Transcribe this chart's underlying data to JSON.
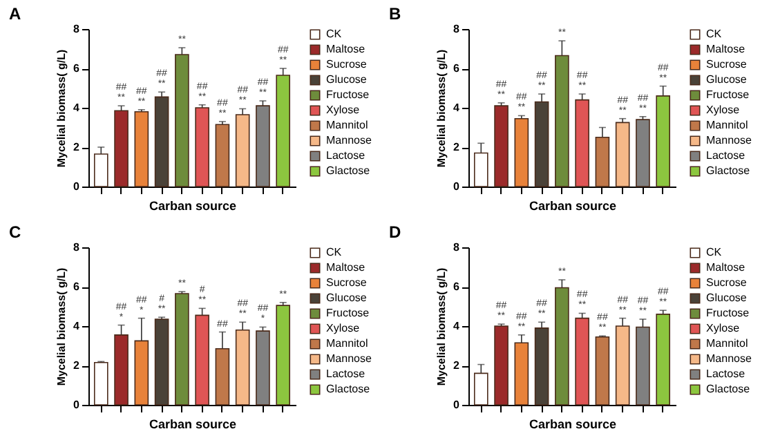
{
  "chart_data": [
    {
      "type": "bar",
      "title": "A",
      "xlabel": "Carban source",
      "ylabel": "Mycelial biomass( g/L)",
      "categories": [
        null,
        null,
        null,
        null,
        null,
        null,
        null,
        null,
        null,
        null
      ],
      "series": [
        {
          "name": "CK",
          "color": "#ffffff",
          "values": [
            1.65,
            null,
            null,
            null,
            null,
            null,
            null,
            null,
            null,
            null
          ],
          "errors": [
            0.35,
            null,
            null,
            null,
            null,
            null,
            null,
            null,
            null,
            null
          ]
        },
        {
          "name": "Maltose",
          "color": "#9b2a2a",
          "values": [
            null,
            3.85,
            null,
            null,
            null,
            null,
            null,
            null,
            null,
            null
          ],
          "errors": [
            null,
            0.25,
            null,
            null,
            null,
            null,
            null,
            null,
            null,
            null
          ],
          "value_labels": [
            null,
            "##\n**",
            null,
            null,
            null,
            null,
            null,
            null,
            null,
            null
          ]
        },
        {
          "name": "Sucrose",
          "color": "#e8823a",
          "values": [
            null,
            null,
            3.8,
            null,
            null,
            null,
            null,
            null,
            null,
            null
          ],
          "errors": [
            null,
            null,
            0.1,
            null,
            null,
            null,
            null,
            null,
            null,
            null
          ],
          "value_labels": [
            null,
            null,
            "##\n**",
            null,
            null,
            null,
            null,
            null,
            null,
            null
          ]
        },
        {
          "name": "Glucose",
          "color": "#4a4238",
          "values": [
            null,
            null,
            null,
            4.55,
            null,
            null,
            null,
            null,
            null,
            null
          ],
          "errors": [
            null,
            null,
            null,
            0.25,
            null,
            null,
            null,
            null,
            null,
            null
          ],
          "value_labels": [
            null,
            null,
            null,
            "##\n**",
            null,
            null,
            null,
            null,
            null,
            null
          ]
        },
        {
          "name": "Fructose",
          "color": "#6e8c3c",
          "values": [
            null,
            null,
            null,
            null,
            6.7,
            null,
            null,
            null,
            null,
            null
          ],
          "errors": [
            null,
            null,
            null,
            null,
            0.35,
            null,
            null,
            null,
            null,
            null
          ],
          "value_labels": [
            null,
            null,
            null,
            null,
            "**",
            null,
            null,
            null,
            null,
            null
          ]
        },
        {
          "name": "Xylose",
          "color": "#e05555",
          "values": [
            null,
            null,
            null,
            null,
            null,
            4.0,
            null,
            null,
            null,
            null
          ],
          "errors": [
            null,
            null,
            null,
            null,
            null,
            0.15,
            null,
            null,
            null,
            null
          ],
          "value_labels": [
            null,
            null,
            null,
            null,
            null,
            "##\n**",
            null,
            null,
            null,
            null
          ]
        },
        {
          "name": "Mannitol",
          "color": "#c0784a",
          "values": [
            null,
            null,
            null,
            null,
            null,
            null,
            3.15,
            null,
            null,
            null
          ],
          "errors": [
            null,
            null,
            null,
            null,
            null,
            null,
            0.15,
            null,
            null,
            null
          ],
          "value_labels": [
            null,
            null,
            null,
            null,
            null,
            null,
            "##\n**",
            null,
            null,
            null
          ]
        },
        {
          "name": "Mannose",
          "color": "#f5b888",
          "values": [
            null,
            null,
            null,
            null,
            null,
            null,
            null,
            3.65,
            null,
            null
          ],
          "errors": [
            null,
            null,
            null,
            null,
            null,
            null,
            null,
            0.3,
            null,
            null
          ],
          "value_labels": [
            null,
            null,
            null,
            null,
            null,
            null,
            null,
            "##\n**",
            null,
            null
          ]
        },
        {
          "name": "Lactose",
          "color": "#808080",
          "values": [
            null,
            null,
            null,
            null,
            null,
            null,
            null,
            null,
            4.1,
            null
          ],
          "errors": [
            null,
            null,
            null,
            null,
            null,
            null,
            null,
            null,
            0.25,
            null
          ],
          "value_labels": [
            null,
            null,
            null,
            null,
            null,
            null,
            null,
            null,
            "##\n**",
            null
          ]
        },
        {
          "name": "Glactose",
          "color": "#8cc63f",
          "values": [
            null,
            null,
            null,
            null,
            null,
            null,
            null,
            null,
            null,
            5.65
          ],
          "errors": [
            null,
            null,
            null,
            null,
            null,
            null,
            null,
            null,
            null,
            0.35
          ],
          "value_labels": [
            null,
            null,
            null,
            null,
            null,
            null,
            null,
            null,
            null,
            "##\n**"
          ]
        }
      ],
      "ylim": [
        0,
        8
      ],
      "yticks": [
        0,
        2,
        4,
        6,
        8
      ],
      "legend": "right",
      "tick_labels": "y"
    },
    {
      "type": "bar",
      "title": "B",
      "xlabel": "Carban source",
      "ylabel": "Mycelial biomass( g/L)",
      "categories": [
        null,
        null,
        null,
        null,
        null,
        null,
        null,
        null,
        null,
        null
      ],
      "series": [
        {
          "name": "CK",
          "color": "#ffffff",
          "values": [
            1.7,
            null,
            null,
            null,
            null,
            null,
            null,
            null,
            null,
            null
          ],
          "errors": [
            0.5,
            null,
            null,
            null,
            null,
            null,
            null,
            null,
            null,
            null
          ]
        },
        {
          "name": "Maltose",
          "color": "#9b2a2a",
          "values": [
            null,
            4.1,
            null,
            null,
            null,
            null,
            null,
            null,
            null,
            null
          ],
          "errors": [
            null,
            0.15,
            null,
            null,
            null,
            null,
            null,
            null,
            null,
            null
          ],
          "value_labels": [
            null,
            "##\n**",
            null,
            null,
            null,
            null,
            null,
            null,
            null,
            null
          ]
        },
        {
          "name": "Sucrose",
          "color": "#e8823a",
          "values": [
            null,
            null,
            3.45,
            null,
            null,
            null,
            null,
            null,
            null,
            null
          ],
          "errors": [
            null,
            null,
            0.15,
            null,
            null,
            null,
            null,
            null,
            null,
            null
          ],
          "value_labels": [
            null,
            null,
            "##\n**",
            null,
            null,
            null,
            null,
            null,
            null,
            null
          ]
        },
        {
          "name": "Glucose",
          "color": "#4a4238",
          "values": [
            null,
            null,
            null,
            4.3,
            null,
            null,
            null,
            null,
            null,
            null
          ],
          "errors": [
            null,
            null,
            null,
            0.4,
            null,
            null,
            null,
            null,
            null,
            null
          ],
          "value_labels": [
            null,
            null,
            null,
            "##\n**",
            null,
            null,
            null,
            null,
            null,
            null
          ]
        },
        {
          "name": "Fructose",
          "color": "#6e8c3c",
          "values": [
            null,
            null,
            null,
            null,
            6.65,
            null,
            null,
            null,
            null,
            null
          ],
          "errors": [
            null,
            null,
            null,
            null,
            0.75,
            null,
            null,
            null,
            null,
            null
          ],
          "value_labels": [
            null,
            null,
            null,
            null,
            "**",
            null,
            null,
            null,
            null,
            null
          ]
        },
        {
          "name": "Xylose",
          "color": "#e05555",
          "values": [
            null,
            null,
            null,
            null,
            null,
            4.4,
            null,
            null,
            null,
            null
          ],
          "errors": [
            null,
            null,
            null,
            null,
            null,
            0.3,
            null,
            null,
            null,
            null
          ],
          "value_labels": [
            null,
            null,
            null,
            null,
            null,
            "##\n**",
            null,
            null,
            null,
            null
          ]
        },
        {
          "name": "Mannitol",
          "color": "#c0784a",
          "values": [
            null,
            null,
            null,
            null,
            null,
            null,
            2.5,
            null,
            null,
            null
          ],
          "errors": [
            null,
            null,
            null,
            null,
            null,
            null,
            0.5,
            null,
            null,
            null
          ]
        },
        {
          "name": "Mannose",
          "color": "#f5b888",
          "values": [
            null,
            null,
            null,
            null,
            null,
            null,
            null,
            3.25,
            null,
            null
          ],
          "errors": [
            null,
            null,
            null,
            null,
            null,
            null,
            null,
            0.2,
            null,
            null
          ],
          "value_labels": [
            null,
            null,
            null,
            null,
            null,
            null,
            null,
            "##\n**",
            null,
            null
          ]
        },
        {
          "name": "Lactose",
          "color": "#808080",
          "values": [
            null,
            null,
            null,
            null,
            null,
            null,
            null,
            null,
            3.4,
            null
          ],
          "errors": [
            null,
            null,
            null,
            null,
            null,
            null,
            null,
            null,
            0.15,
            null
          ],
          "value_labels": [
            null,
            null,
            null,
            null,
            null,
            null,
            null,
            null,
            "##\n**",
            null
          ]
        },
        {
          "name": "Glactose",
          "color": "#8cc63f",
          "values": [
            null,
            null,
            null,
            null,
            null,
            null,
            null,
            null,
            null,
            4.6
          ],
          "errors": [
            null,
            null,
            null,
            null,
            null,
            null,
            null,
            null,
            null,
            0.5
          ],
          "value_labels": [
            null,
            null,
            null,
            null,
            null,
            null,
            null,
            null,
            null,
            "##\n**"
          ]
        }
      ],
      "ylim": [
        0,
        8
      ],
      "yticks": [
        0,
        2,
        4,
        6,
        8
      ],
      "legend": "right",
      "tick_labels": "y"
    },
    {
      "type": "bar",
      "title": "C",
      "xlabel": "Carban source",
      "ylabel": "Mycelial biomass( g/L)",
      "categories": [
        null,
        null,
        null,
        null,
        null,
        null,
        null,
        null,
        null,
        null
      ],
      "series": [
        {
          "name": "CK",
          "color": "#ffffff",
          "values": [
            2.15,
            null,
            null,
            null,
            null,
            null,
            null,
            null,
            null,
            null
          ],
          "errors": [
            0.05,
            null,
            null,
            null,
            null,
            null,
            null,
            null,
            null,
            null
          ]
        },
        {
          "name": "Maltose",
          "color": "#9b2a2a",
          "values": [
            null,
            3.55,
            null,
            null,
            null,
            null,
            null,
            null,
            null,
            null
          ],
          "errors": [
            null,
            0.5,
            null,
            null,
            null,
            null,
            null,
            null,
            null,
            null
          ],
          "value_labels": [
            null,
            "##\n*",
            null,
            null,
            null,
            null,
            null,
            null,
            null,
            null
          ]
        },
        {
          "name": "Sucrose",
          "color": "#e8823a",
          "values": [
            null,
            null,
            3.25,
            null,
            null,
            null,
            null,
            null,
            null,
            null
          ],
          "errors": [
            null,
            null,
            1.15,
            null,
            null,
            null,
            null,
            null,
            null,
            null
          ],
          "value_labels": [
            null,
            null,
            "##\n*",
            null,
            null,
            null,
            null,
            null,
            null,
            null
          ]
        },
        {
          "name": "Glucose",
          "color": "#4a4238",
          "values": [
            null,
            null,
            null,
            4.35,
            null,
            null,
            null,
            null,
            null,
            null
          ],
          "errors": [
            null,
            null,
            null,
            0.1,
            null,
            null,
            null,
            null,
            null,
            null
          ],
          "value_labels": [
            null,
            null,
            null,
            "#\n**",
            null,
            null,
            null,
            null,
            null,
            null
          ]
        },
        {
          "name": "Fructose",
          "color": "#6e8c3c",
          "values": [
            null,
            null,
            null,
            null,
            5.65,
            null,
            null,
            null,
            null,
            null
          ],
          "errors": [
            null,
            null,
            null,
            null,
            0.1,
            null,
            null,
            null,
            null,
            null
          ],
          "value_labels": [
            null,
            null,
            null,
            null,
            "**",
            null,
            null,
            null,
            null,
            null
          ]
        },
        {
          "name": "Xylose",
          "color": "#e05555",
          "values": [
            null,
            null,
            null,
            null,
            null,
            4.55,
            null,
            null,
            null,
            null
          ],
          "errors": [
            null,
            null,
            null,
            null,
            null,
            0.35,
            null,
            null,
            null,
            null
          ],
          "value_labels": [
            null,
            null,
            null,
            null,
            null,
            "#\n**",
            null,
            null,
            null,
            null
          ]
        },
        {
          "name": "Mannitol",
          "color": "#c0784a",
          "values": [
            null,
            null,
            null,
            null,
            null,
            null,
            2.85,
            null,
            null,
            null
          ],
          "errors": [
            null,
            null,
            null,
            null,
            null,
            null,
            0.85,
            null,
            null,
            null
          ],
          "value_labels": [
            null,
            null,
            null,
            null,
            null,
            null,
            "##",
            null,
            null,
            null
          ]
        },
        {
          "name": "Mannose",
          "color": "#f5b888",
          "values": [
            null,
            null,
            null,
            null,
            null,
            null,
            null,
            3.8,
            null,
            null
          ],
          "errors": [
            null,
            null,
            null,
            null,
            null,
            null,
            null,
            0.4,
            null,
            null
          ],
          "value_labels": [
            null,
            null,
            null,
            null,
            null,
            null,
            null,
            "##\n**",
            null,
            null
          ]
        },
        {
          "name": "Lactose",
          "color": "#808080",
          "values": [
            null,
            null,
            null,
            null,
            null,
            null,
            null,
            null,
            3.75,
            null
          ],
          "errors": [
            null,
            null,
            null,
            null,
            null,
            null,
            null,
            null,
            0.2,
            null
          ],
          "value_labels": [
            null,
            null,
            null,
            null,
            null,
            null,
            null,
            null,
            "##\n*",
            null
          ]
        },
        {
          "name": "Glactose",
          "color": "#8cc63f",
          "values": [
            null,
            null,
            null,
            null,
            null,
            null,
            null,
            null,
            null,
            5.05
          ],
          "errors": [
            null,
            null,
            null,
            null,
            null,
            null,
            null,
            null,
            null,
            0.15
          ],
          "value_labels": [
            null,
            null,
            null,
            null,
            null,
            null,
            null,
            null,
            null,
            "**"
          ]
        }
      ],
      "ylim": [
        0,
        8
      ],
      "yticks": [
        0,
        2,
        4,
        6,
        8
      ],
      "legend": "right",
      "tick_labels": "y"
    },
    {
      "type": "bar",
      "title": "D",
      "xlabel": "Carban source",
      "ylabel": "Mycelial biomass( g/L)",
      "categories": [
        null,
        null,
        null,
        null,
        null,
        null,
        null,
        null,
        null,
        null
      ],
      "series": [
        {
          "name": "CK",
          "color": "#ffffff",
          "values": [
            1.6,
            null,
            null,
            null,
            null,
            null,
            null,
            null,
            null,
            null
          ],
          "errors": [
            0.45,
            null,
            null,
            null,
            null,
            null,
            null,
            null,
            null,
            null
          ]
        },
        {
          "name": "Maltose",
          "color": "#9b2a2a",
          "values": [
            null,
            4.0,
            null,
            null,
            null,
            null,
            null,
            null,
            null,
            null
          ],
          "errors": [
            null,
            0.1,
            null,
            null,
            null,
            null,
            null,
            null,
            null,
            null
          ],
          "value_labels": [
            null,
            "##\n**",
            null,
            null,
            null,
            null,
            null,
            null,
            null,
            null
          ]
        },
        {
          "name": "Sucrose",
          "color": "#e8823a",
          "values": [
            null,
            null,
            3.15,
            null,
            null,
            null,
            null,
            null,
            null,
            null
          ],
          "errors": [
            null,
            null,
            0.4,
            null,
            null,
            null,
            null,
            null,
            null,
            null
          ],
          "value_labels": [
            null,
            null,
            "##\n**",
            null,
            null,
            null,
            null,
            null,
            null,
            null
          ]
        },
        {
          "name": "Glucose",
          "color": "#4a4238",
          "values": [
            null,
            null,
            null,
            3.9,
            null,
            null,
            null,
            null,
            null,
            null
          ],
          "errors": [
            null,
            null,
            null,
            0.3,
            null,
            null,
            null,
            null,
            null,
            null
          ],
          "value_labels": [
            null,
            null,
            null,
            "##\n**",
            null,
            null,
            null,
            null,
            null,
            null
          ]
        },
        {
          "name": "Fructose",
          "color": "#6e8c3c",
          "values": [
            null,
            null,
            null,
            null,
            5.95,
            null,
            null,
            null,
            null,
            null
          ],
          "errors": [
            null,
            null,
            null,
            null,
            0.4,
            null,
            null,
            null,
            null,
            null
          ],
          "value_labels": [
            null,
            null,
            null,
            null,
            "**",
            null,
            null,
            null,
            null,
            null
          ]
        },
        {
          "name": "Xylose",
          "color": "#e05555",
          "values": [
            null,
            null,
            null,
            null,
            null,
            4.4,
            null,
            null,
            null,
            null
          ],
          "errors": [
            null,
            null,
            null,
            null,
            null,
            0.25,
            null,
            null,
            null,
            null
          ],
          "value_labels": [
            null,
            null,
            null,
            null,
            null,
            "##\n**",
            null,
            null,
            null,
            null
          ]
        },
        {
          "name": "Mannitol",
          "color": "#c0784a",
          "values": [
            null,
            null,
            null,
            null,
            null,
            null,
            3.45,
            null,
            null,
            null
          ],
          "errors": [
            null,
            null,
            null,
            null,
            null,
            null,
            0.05,
            null,
            null,
            null
          ],
          "value_labels": [
            null,
            null,
            null,
            null,
            null,
            null,
            "##\n**",
            null,
            null,
            null
          ]
        },
        {
          "name": "Mannose",
          "color": "#f5b888",
          "values": [
            null,
            null,
            null,
            null,
            null,
            null,
            null,
            4.0,
            null,
            null
          ],
          "errors": [
            null,
            null,
            null,
            null,
            null,
            null,
            null,
            0.4,
            null,
            null
          ],
          "value_labels": [
            null,
            null,
            null,
            null,
            null,
            null,
            null,
            "##\n**",
            null,
            null
          ]
        },
        {
          "name": "Lactose",
          "color": "#808080",
          "values": [
            null,
            null,
            null,
            null,
            null,
            null,
            null,
            null,
            3.95,
            null
          ],
          "errors": [
            null,
            null,
            null,
            null,
            null,
            null,
            null,
            null,
            0.4,
            null
          ],
          "value_labels": [
            null,
            null,
            null,
            null,
            null,
            null,
            null,
            null,
            "##\n**",
            null
          ]
        },
        {
          "name": "Glactose",
          "color": "#8cc63f",
          "values": [
            null,
            null,
            null,
            null,
            null,
            null,
            null,
            null,
            null,
            4.6
          ],
          "errors": [
            null,
            null,
            null,
            null,
            null,
            null,
            null,
            null,
            null,
            0.2
          ],
          "value_labels": [
            null,
            null,
            null,
            null,
            null,
            null,
            null,
            null,
            null,
            "##\n**"
          ]
        }
      ],
      "ylim": [
        0,
        8
      ],
      "yticks": [
        0,
        2,
        4,
        6,
        8
      ],
      "legend": "right",
      "tick_labels": "y"
    }
  ]
}
